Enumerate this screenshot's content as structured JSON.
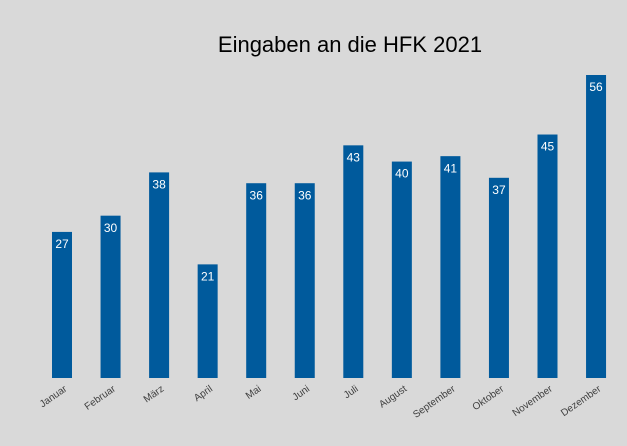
{
  "chart_data": {
    "type": "bar",
    "title": "Eingaben an die HFK 2021",
    "categories": [
      "Januar",
      "Februar",
      "März",
      "April",
      "Mai",
      "Juni",
      "Juli",
      "August",
      "September",
      "Oktober",
      "November",
      "Dezember"
    ],
    "values": [
      27,
      30,
      38,
      21,
      36,
      36,
      43,
      40,
      41,
      37,
      45,
      56
    ],
    "color": "#005a9c"
  }
}
